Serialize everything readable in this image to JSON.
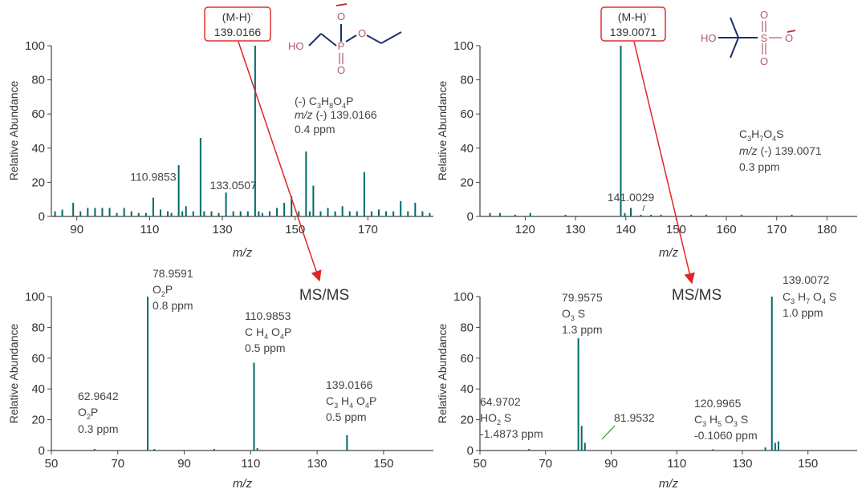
{
  "colors": {
    "peak": "#006a6a",
    "axis": "#444444",
    "arrow": "#e02525",
    "box": "#e03030",
    "bond": "#1f2f6e",
    "atom": "#b05a6a"
  },
  "chart_data": [
    {
      "id": "tl",
      "type": "bar",
      "xlabel": "m/z",
      "ylabel": "Relative Abundance",
      "xlim": [
        83,
        188
      ],
      "ylim": [
        0,
        100
      ],
      "xticks": [
        90,
        110,
        130,
        150,
        170
      ],
      "yticks": [
        0,
        20,
        40,
        60,
        80,
        100
      ],
      "peaks": [
        [
          84,
          3
        ],
        [
          86,
          4
        ],
        [
          89,
          8
        ],
        [
          91,
          3
        ],
        [
          93,
          5
        ],
        [
          95,
          5
        ],
        [
          97,
          5
        ],
        [
          99,
          5
        ],
        [
          101,
          2
        ],
        [
          103,
          5
        ],
        [
          105,
          3
        ],
        [
          107,
          2
        ],
        [
          109,
          2
        ],
        [
          111,
          11
        ],
        [
          113,
          4
        ],
        [
          115,
          3
        ],
        [
          116,
          2
        ],
        [
          118,
          30
        ],
        [
          119,
          3
        ],
        [
          120,
          6
        ],
        [
          122,
          3
        ],
        [
          124,
          46
        ],
        [
          125,
          3
        ],
        [
          127,
          3
        ],
        [
          129,
          2
        ],
        [
          131,
          14
        ],
        [
          133,
          3
        ],
        [
          135,
          3
        ],
        [
          137,
          3
        ],
        [
          139,
          100
        ],
        [
          140,
          3
        ],
        [
          141,
          2
        ],
        [
          143,
          3
        ],
        [
          145,
          5
        ],
        [
          147,
          8
        ],
        [
          149,
          12
        ],
        [
          151,
          3
        ],
        [
          153,
          38
        ],
        [
          154,
          3
        ],
        [
          155,
          18
        ],
        [
          157,
          3
        ],
        [
          159,
          5
        ],
        [
          161,
          3
        ],
        [
          163,
          6
        ],
        [
          165,
          3
        ],
        [
          167,
          3
        ],
        [
          169,
          26
        ],
        [
          171,
          3
        ],
        [
          173,
          4
        ],
        [
          175,
          3
        ],
        [
          177,
          3
        ],
        [
          179,
          9
        ],
        [
          181,
          3
        ],
        [
          183,
          8
        ],
        [
          185,
          3
        ],
        [
          187,
          2
        ]
      ],
      "labels": [
        {
          "text": "110.9853",
          "x": 111,
          "y": 20
        },
        {
          "text": "133.0507",
          "x": 133,
          "y": 15
        }
      ],
      "annotation_lines": [
        "(-) C3H8O4P",
        "m/z (-) 139.0166",
        "0.4 ppm"
      ],
      "ion_box": [
        "(M-H)-",
        "139.0166"
      ]
    },
    {
      "id": "tr",
      "type": "bar",
      "xlabel": "m/z",
      "ylabel": "Relative Abundance",
      "xlim": [
        111,
        186
      ],
      "ylim": [
        0,
        100
      ],
      "xticks": [
        120,
        130,
        140,
        150,
        160,
        170,
        180
      ],
      "yticks": [
        0,
        20,
        40,
        60,
        80,
        100
      ],
      "peaks": [
        [
          113,
          2
        ],
        [
          115,
          2
        ],
        [
          118,
          1
        ],
        [
          121,
          2
        ],
        [
          128,
          1
        ],
        [
          139,
          100
        ],
        [
          139.8,
          2
        ],
        [
          141,
          5
        ],
        [
          143,
          1
        ],
        [
          145,
          1
        ],
        [
          147,
          1
        ],
        [
          153,
          1
        ],
        [
          156,
          1
        ],
        [
          163,
          1
        ],
        [
          173,
          1
        ]
      ],
      "labels": [
        {
          "text": "141.0029",
          "x": 141,
          "y": 8
        }
      ],
      "annotation_lines": [
        "C3H7O4S",
        "m/z (-) 139.0071",
        "0.3 ppm"
      ],
      "ion_box": [
        "(M-H)-",
        "139.0071"
      ]
    },
    {
      "id": "bl",
      "type": "bar",
      "xlabel": "m/z",
      "ylabel": "Relative Abundance",
      "xlim": [
        50,
        165
      ],
      "ylim": [
        0,
        100
      ],
      "xticks": [
        50,
        70,
        90,
        110,
        130,
        150
      ],
      "yticks": [
        0,
        20,
        40,
        60,
        80,
        100
      ],
      "peaks": [
        [
          63,
          1
        ],
        [
          79,
          100
        ],
        [
          81,
          1
        ],
        [
          99,
          1
        ],
        [
          111,
          57
        ],
        [
          112,
          1.5
        ],
        [
          139,
          10
        ]
      ],
      "labels": [],
      "title": "MS/MS"
    },
    {
      "id": "br",
      "type": "bar",
      "xlabel": "m/z",
      "ylabel": "Relative Abundance",
      "xlim": [
        50,
        165
      ],
      "ylim": [
        0,
        100
      ],
      "xticks": [
        50,
        70,
        90,
        110,
        130,
        150
      ],
      "yticks": [
        0,
        20,
        40,
        60,
        80,
        100
      ],
      "peaks": [
        [
          65,
          1
        ],
        [
          80,
          73
        ],
        [
          81,
          16
        ],
        [
          82,
          5
        ],
        [
          121,
          0.8
        ],
        [
          137,
          2
        ],
        [
          139,
          100
        ],
        [
          140,
          5
        ],
        [
          141,
          6
        ]
      ],
      "labels": [],
      "title": "MS/MS"
    }
  ],
  "peak_notes": {
    "bl": [
      {
        "lines": [
          "78.9591",
          "O2P",
          "0.8 ppm"
        ]
      },
      {
        "lines": [
          "110.9853",
          "C H4 O4P",
          "0.5 ppm"
        ]
      },
      {
        "lines": [
          "62.9642",
          "O2P",
          "0.3 ppm"
        ]
      },
      {
        "lines": [
          "139.0166",
          "C3 H4 O4P",
          "0.5 ppm"
        ]
      }
    ],
    "br": [
      {
        "lines": [
          "79.9575",
          "O3 S",
          "1.3 ppm"
        ]
      },
      {
        "lines": [
          "139.0072",
          "C3 H7 O4 S",
          "1.0 ppm"
        ]
      },
      {
        "lines": [
          "64.9702",
          "HO2 S",
          "-1.4873 ppm"
        ]
      },
      {
        "lines": [
          "81.9532"
        ]
      },
      {
        "lines": [
          "120.9965",
          "C3 H5 O3 S",
          "-0.1060 ppm"
        ]
      }
    ]
  },
  "molecules": {
    "left": {
      "atoms": [
        "HO",
        "P",
        "O",
        "O",
        "O"
      ]
    },
    "right": {
      "atoms": [
        "HO",
        "S",
        "O",
        "O",
        "O"
      ]
    }
  }
}
